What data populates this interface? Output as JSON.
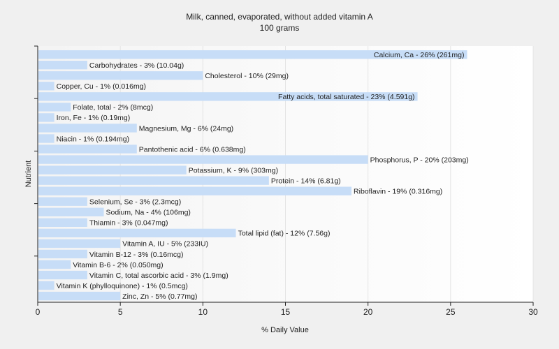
{
  "chart_data": {
    "type": "bar",
    "orientation": "horizontal",
    "title": "Milk, canned, evaporated, without added vitamin A",
    "subtitle": "100 grams",
    "xlabel": "% Daily Value",
    "ylabel": "Nutrient",
    "xlim": [
      0,
      30
    ],
    "xticks": [
      0,
      5,
      10,
      15,
      20,
      25,
      30
    ],
    "grid": "vertical",
    "bar_color": "#c7ddf7",
    "categories": [
      "Calcium, Ca",
      "Carbohydrates",
      "Cholesterol",
      "Copper, Cu",
      "Fatty acids, total saturated",
      "Folate, total",
      "Iron, Fe",
      "Magnesium, Mg",
      "Niacin",
      "Pantothenic acid",
      "Phosphorus, P",
      "Potassium, K",
      "Protein",
      "Riboflavin",
      "Selenium, Se",
      "Sodium, Na",
      "Thiamin",
      "Total lipid (fat)",
      "Vitamin A, IU",
      "Vitamin B-12",
      "Vitamin B-6",
      "Vitamin C, total ascorbic acid",
      "Vitamin K (phylloquinone)",
      "Zinc, Zn"
    ],
    "values": [
      26,
      3,
      10,
      1,
      23,
      2,
      1,
      6,
      1,
      6,
      20,
      9,
      14,
      19,
      3,
      4,
      3,
      12,
      5,
      3,
      2,
      3,
      1,
      5
    ],
    "labels": [
      "Calcium, Ca - 26% (261mg)",
      "Carbohydrates - 3% (10.04g)",
      "Cholesterol - 10% (29mg)",
      "Copper, Cu - 1% (0.016mg)",
      "Fatty acids, total saturated - 23% (4.591g)",
      "Folate, total - 2% (8mcg)",
      "Iron, Fe - 1% (0.19mg)",
      "Magnesium, Mg - 6% (24mg)",
      "Niacin - 1% (0.194mg)",
      "Pantothenic acid - 6% (0.638mg)",
      "Phosphorus, P - 20% (203mg)",
      "Potassium, K - 9% (303mg)",
      "Protein - 14% (6.81g)",
      "Riboflavin - 19% (0.316mg)",
      "Selenium, Se - 3% (2.3mcg)",
      "Sodium, Na - 4% (106mg)",
      "Thiamin - 3% (0.047mg)",
      "Total lipid (fat) - 12% (7.56g)",
      "Vitamin A, IU - 5% (233IU)",
      "Vitamin B-12 - 3% (0.16mcg)",
      "Vitamin B-6 - 2% (0.050mg)",
      "Vitamin C, total ascorbic acid - 3% (1.9mg)",
      "Vitamin K (phylloquinone) - 1% (0.5mcg)",
      "Zinc, Zn - 5% (0.77mg)"
    ]
  }
}
